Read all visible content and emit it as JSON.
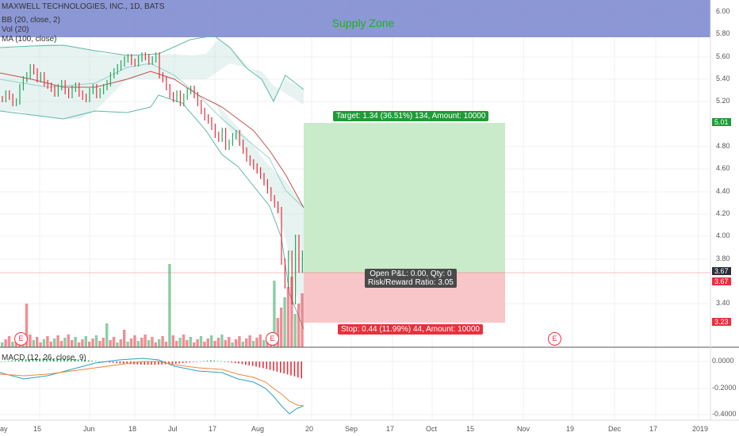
{
  "header": {
    "symbol_title": "MAXWELL TECHNOLOGIES, INC., 1D, BATS",
    "indicators": [
      "BB (20, close, 2)",
      "Vol (20)",
      "MA (100, close)"
    ]
  },
  "zone_label": "Supply Zone",
  "position": {
    "target_label": "Target: 1.34 (36.51%) 134, Amount: 10000",
    "stop_label": "Stop: 0.44 (11.99%) 44, Amount: 10000",
    "pnl_label": "Open P&L: 0.00, Qty: 0",
    "rr_label": "Risk/Reward Ratio: 3.05"
  },
  "price_axis": {
    "ticks": [
      "6.00",
      "5.80",
      "5.60",
      "5.40",
      "5.20",
      "4.80",
      "4.60",
      "4.40",
      "4.20",
      "4.00",
      "3.80",
      "3.40"
    ],
    "badges": [
      {
        "text": "5.01",
        "color": "#1e9b37"
      },
      {
        "text": "3.67",
        "color": "#2a2e39"
      },
      {
        "text": "3.67",
        "color": "#e8303d"
      },
      {
        "text": "3.23",
        "color": "#e8303d"
      }
    ]
  },
  "macd": {
    "label": "MACD (12, 26, close, 9)",
    "ticks": [
      "0.0000",
      "-0.2000",
      "-0.4000"
    ]
  },
  "time_axis": {
    "ticks": [
      "ay",
      "15",
      "Jun",
      "18",
      "Jul",
      "17",
      "Aug",
      "20",
      "Sep",
      "17",
      "Oct",
      "15",
      "Nov",
      "19",
      "Dec",
      "17",
      "2019"
    ]
  },
  "earnings_marker": "E",
  "colors": {
    "up": "#26a65b",
    "down": "#e8303d",
    "supply_zone": "#7f8cd0",
    "target_fill": "#c9ebca",
    "stop_fill": "#f8c6c8"
  }
}
